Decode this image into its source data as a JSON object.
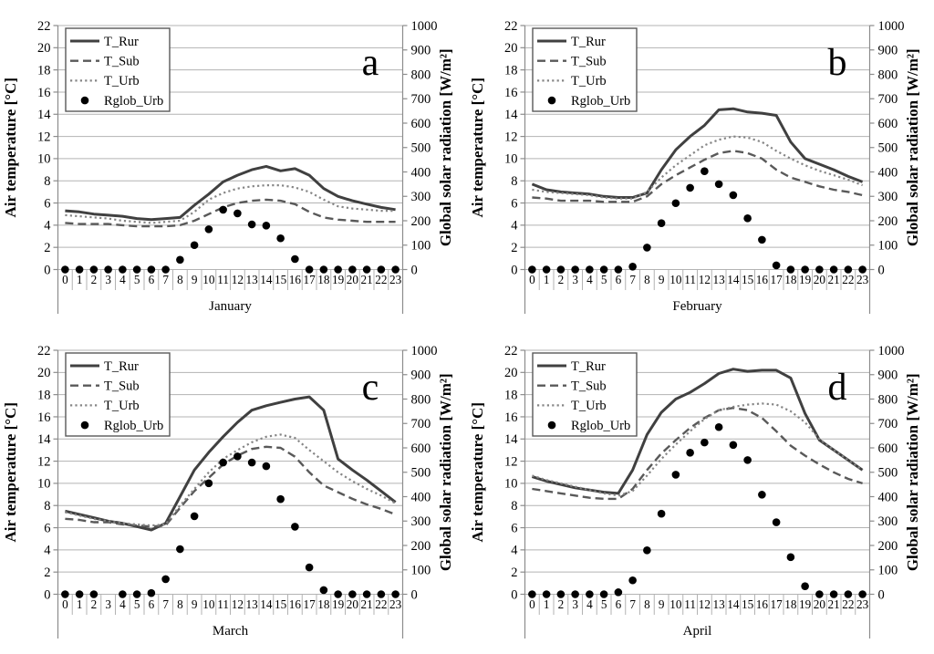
{
  "page": {
    "background": "#ffffff"
  },
  "shared": {
    "left_axis": {
      "label": "Air temperature [°C]",
      "min": 0,
      "max": 22,
      "step": 2
    },
    "right_axis": {
      "label": "Global solar radiation [W/m²]",
      "min": 0,
      "max": 1000,
      "step": 100
    },
    "x_axis": {
      "hours": [
        "0",
        "1",
        "2",
        "3",
        "4",
        "5",
        "6",
        "7",
        "8",
        "9",
        "10",
        "11",
        "12",
        "13",
        "14",
        "15",
        "16",
        "17",
        "18",
        "19",
        "20",
        "21",
        "22",
        "23"
      ]
    },
    "legend": [
      {
        "name": "T_Rur",
        "style": "solid",
        "color": "#404040",
        "width": 3
      },
      {
        "name": "T_Sub",
        "style": "dashed",
        "color": "#595959",
        "width": 2.4
      },
      {
        "name": "T_Urb",
        "style": "dotted",
        "color": "#858585",
        "width": 2.2
      },
      {
        "name": "Rglob_Urb",
        "style": "dot",
        "color": "#000000",
        "width": 4.3
      }
    ],
    "colors": {
      "grid": "#b3b3b3",
      "axis": "#8c8c8c",
      "text": "#000000",
      "legend_border": "#595959"
    }
  },
  "chart_data": [
    {
      "type": "line+scatter",
      "panel_label": "a",
      "month": "January",
      "series": [
        {
          "name": "T_Rur",
          "axis": "left",
          "values": [
            5.3,
            5.2,
            5.0,
            4.9,
            4.8,
            4.6,
            4.5,
            4.6,
            4.7,
            5.8,
            6.8,
            7.9,
            8.5,
            9.0,
            9.3,
            8.9,
            9.1,
            8.5,
            7.3,
            6.6,
            6.2,
            5.9,
            5.6,
            5.4
          ]
        },
        {
          "name": "T_Sub",
          "axis": "left",
          "values": [
            4.2,
            4.1,
            4.1,
            4.1,
            4.0,
            3.9,
            3.9,
            3.9,
            4.0,
            4.4,
            5.0,
            5.6,
            6.0,
            6.2,
            6.3,
            6.2,
            5.9,
            5.2,
            4.7,
            4.5,
            4.4,
            4.3,
            4.3,
            4.3
          ]
        },
        {
          "name": "T_Urb",
          "axis": "left",
          "values": [
            4.9,
            4.8,
            4.7,
            4.6,
            4.4,
            4.3,
            4.2,
            4.3,
            4.4,
            5.2,
            6.3,
            6.9,
            7.3,
            7.5,
            7.6,
            7.6,
            7.4,
            7.0,
            6.3,
            5.7,
            5.5,
            5.4,
            5.3,
            5.3
          ]
        }
      ],
      "points": {
        "name": "Rglob_Urb",
        "axis": "right",
        "values": [
          0,
          0,
          0,
          0,
          0,
          0,
          0,
          0,
          40,
          100,
          165,
          245,
          230,
          185,
          180,
          128,
          43,
          0,
          0,
          0,
          0,
          0,
          0,
          0
        ]
      }
    },
    {
      "type": "line+scatter",
      "panel_label": "b",
      "month": "February",
      "series": [
        {
          "name": "T_Rur",
          "axis": "left",
          "values": [
            7.7,
            7.2,
            7.0,
            6.9,
            6.8,
            6.6,
            6.5,
            6.5,
            6.9,
            9.0,
            10.8,
            12.0,
            13.0,
            14.4,
            14.5,
            14.2,
            14.1,
            13.9,
            11.5,
            10.0,
            9.5,
            9.0,
            8.4,
            7.9
          ]
        },
        {
          "name": "T_Sub",
          "axis": "left",
          "values": [
            6.5,
            6.4,
            6.2,
            6.2,
            6.2,
            6.1,
            6.1,
            6.1,
            6.6,
            7.7,
            8.5,
            9.2,
            9.9,
            10.5,
            10.7,
            10.5,
            10.0,
            9.0,
            8.3,
            7.9,
            7.5,
            7.2,
            7.0,
            6.7
          ]
        },
        {
          "name": "T_Urb",
          "axis": "left",
          "values": [
            7.2,
            7.0,
            6.9,
            6.8,
            6.7,
            6.5,
            6.4,
            6.4,
            7.0,
            8.3,
            9.4,
            10.3,
            11.2,
            11.7,
            12.0,
            11.9,
            11.5,
            10.7,
            10.0,
            9.4,
            8.9,
            8.5,
            8.1,
            7.6
          ]
        }
      ],
      "points": {
        "name": "Rglob_Urb",
        "axis": "right",
        "values": [
          0,
          0,
          0,
          0,
          0,
          0,
          0,
          12,
          90,
          190,
          272,
          335,
          403,
          350,
          305,
          210,
          122,
          17,
          0,
          0,
          0,
          0,
          0,
          0
        ]
      }
    },
    {
      "type": "line+scatter",
      "panel_label": "c",
      "month": "March",
      "series": [
        {
          "name": "T_Rur",
          "axis": "left",
          "values": [
            7.5,
            7.2,
            6.9,
            6.6,
            6.4,
            6.1,
            5.8,
            6.4,
            8.8,
            11.2,
            12.8,
            14.2,
            15.5,
            16.6,
            17.0,
            17.3,
            17.6,
            17.8,
            16.6,
            12.2,
            11.2,
            10.3,
            9.3,
            8.3
          ]
        },
        {
          "name": "T_Sub",
          "axis": "left",
          "values": [
            6.8,
            6.7,
            6.5,
            6.5,
            6.3,
            6.2,
            6.1,
            6.2,
            7.8,
            9.3,
            10.5,
            11.7,
            12.5,
            13.1,
            13.3,
            13.2,
            12.4,
            11.0,
            9.8,
            9.2,
            8.6,
            8.1,
            7.7,
            7.2
          ]
        },
        {
          "name": "T_Urb",
          "axis": "left",
          "values": [
            7.4,
            7.1,
            6.8,
            6.6,
            6.4,
            6.3,
            6.2,
            6.3,
            8.0,
            9.5,
            11.0,
            12.2,
            13.0,
            13.7,
            14.2,
            14.4,
            14.1,
            13.0,
            12.0,
            11.0,
            10.2,
            9.5,
            8.9,
            8.2
          ]
        }
      ],
      "points": {
        "name": "Rglob_Urb",
        "axis": "right",
        "values": [
          0,
          0,
          0,
          null,
          0,
          0,
          5,
          62,
          185,
          320,
          455,
          540,
          565,
          540,
          525,
          390,
          277,
          110,
          17,
          0,
          0,
          0,
          0,
          0
        ]
      }
    },
    {
      "type": "line+scatter",
      "panel_label": "d",
      "month": "April",
      "series": [
        {
          "name": "T_Rur",
          "axis": "left",
          "values": [
            10.6,
            10.2,
            9.9,
            9.6,
            9.4,
            9.2,
            9.1,
            11.2,
            14.4,
            16.4,
            17.6,
            18.2,
            19.0,
            19.9,
            20.3,
            20.1,
            20.2,
            20.2,
            19.5,
            16.3,
            13.9,
            13.0,
            12.1,
            11.2
          ]
        },
        {
          "name": "T_Sub",
          "axis": "left",
          "values": [
            9.5,
            9.3,
            9.1,
            8.9,
            8.7,
            8.6,
            8.6,
            9.5,
            11.2,
            12.7,
            13.9,
            15.0,
            15.9,
            16.6,
            16.8,
            16.6,
            15.9,
            14.7,
            13.4,
            12.5,
            11.7,
            11.0,
            10.4,
            10.0
          ]
        },
        {
          "name": "T_Urb",
          "axis": "left",
          "values": [
            10.7,
            10.3,
            10.0,
            9.7,
            9.4,
            9.1,
            8.9,
            9.3,
            10.7,
            12.2,
            13.5,
            14.7,
            15.8,
            16.6,
            16.9,
            17.1,
            17.2,
            17.1,
            16.5,
            15.5,
            14.0,
            13.0,
            12.1,
            11.2
          ]
        }
      ],
      "points": {
        "name": "Rglob_Urb",
        "axis": "right",
        "values": [
          0,
          0,
          0,
          0,
          0,
          0,
          8,
          57,
          180,
          330,
          490,
          580,
          622,
          685,
          612,
          550,
          408,
          295,
          152,
          33,
          0,
          0,
          0,
          0
        ]
      }
    }
  ]
}
